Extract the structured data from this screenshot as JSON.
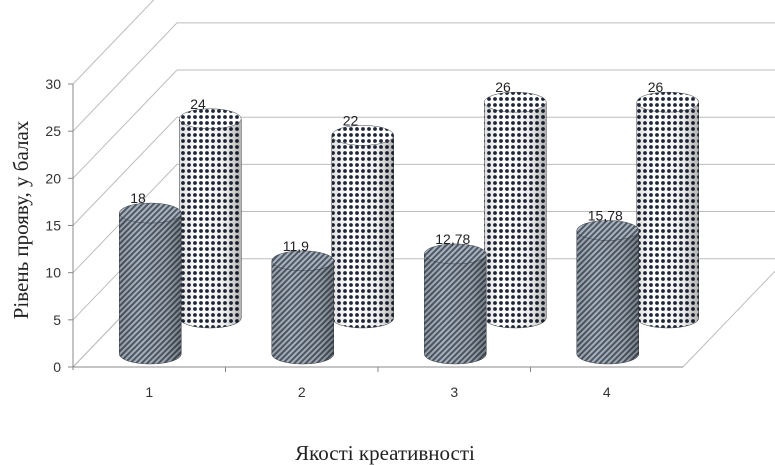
{
  "chart_data": {
    "type": "bar",
    "style": "3d-cylinder",
    "categories": [
      "1",
      "2",
      "3",
      "4"
    ],
    "series": [
      {
        "values": [
          18,
          11.9,
          12.78,
          15.78
        ],
        "labels": [
          "18",
          "11,9",
          "12,78",
          "15,78"
        ],
        "pattern": "diagonal-hatch",
        "color": "#7f8a97"
      },
      {
        "values": [
          24,
          22,
          26,
          26
        ],
        "labels": [
          "24",
          "22",
          "26",
          "26"
        ],
        "pattern": "diamond-dots",
        "color": "#2a3346"
      }
    ],
    "yticks": [
      "0",
      "5",
      "10",
      "15",
      "20",
      "25",
      "30"
    ],
    "ylim": [
      0,
      30
    ],
    "xlabel": "Якості креативності",
    "ylabel": "Рівень прояву, у балах",
    "grid": true,
    "legend": "none"
  }
}
